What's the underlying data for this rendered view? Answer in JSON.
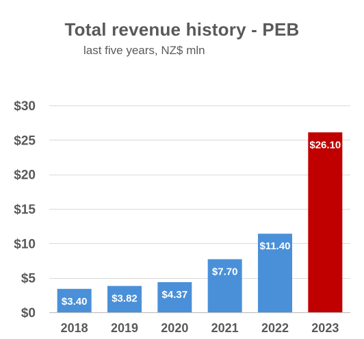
{
  "chart_data": {
    "type": "bar",
    "title": "Total revenue history - PEB",
    "subtitle": "last five years, NZ$ mln",
    "categories": [
      "2018",
      "2019",
      "2020",
      "2021",
      "2022",
      "2023"
    ],
    "values": [
      3.4,
      3.82,
      4.37,
      7.7,
      11.4,
      26.1
    ],
    "data_labels": [
      "$3.40",
      "$3.82",
      "$4.37",
      "$7.70",
      "$11.40",
      "$26.10"
    ],
    "bar_colors": [
      "#4a90d9",
      "#4a90d9",
      "#4a90d9",
      "#4a90d9",
      "#4a90d9",
      "#c00000"
    ],
    "ylim": [
      0,
      30
    ],
    "yticks": [
      0,
      5,
      10,
      15,
      20,
      25,
      30
    ],
    "ytick_labels": [
      "$0",
      "$5",
      "$10",
      "$15",
      "$20",
      "$25",
      "$30"
    ],
    "xlabel": "",
    "ylabel": "",
    "grid": true,
    "legend": "none"
  },
  "colors": {
    "bar": "#4a90d9",
    "highlight_bar": "#c00000",
    "grid": "#d9d9d9",
    "axis_text": "#595959",
    "bar_label": "#ffffff"
  }
}
